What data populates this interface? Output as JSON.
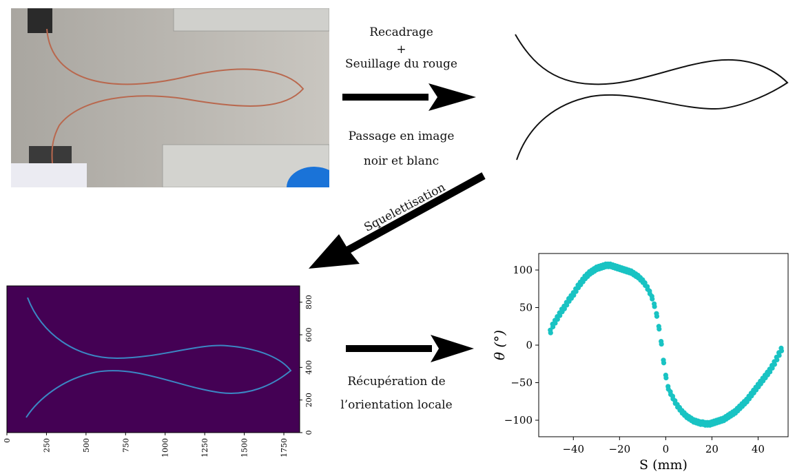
{
  "steps": {
    "crop": {
      "line1": "Recadrage",
      "line2": "+",
      "line3": "Seuillage du rouge"
    },
    "bw": {
      "line1": "Passage en image",
      "line2": "noir et blanc"
    },
    "skeleton": {
      "label": "Squelettisation"
    },
    "orientation": {
      "line1": "Récupération de",
      "line2": "l’orientation locale"
    }
  },
  "skeleton_plot": {
    "x_ticks": [
      "0",
      "250",
      "500",
      "750",
      "1000",
      "1250",
      "1500",
      "1750"
    ],
    "y_ticks": [
      "0",
      "200",
      "400",
      "600",
      "800"
    ],
    "colors": {
      "background": "#440154",
      "curve": "#3b87c4"
    }
  },
  "chart_data": {
    "type": "scatter",
    "xlabel": "S (mm)",
    "ylabel": "θ (°)",
    "xlim": [
      -55,
      53
    ],
    "ylim": [
      -122,
      122
    ],
    "x_ticks": [
      -40,
      -20,
      0,
      20,
      40
    ],
    "y_ticks": [
      -100,
      -50,
      0,
      50,
      100
    ],
    "color": "#19c3c3",
    "grid": false,
    "series": [
      {
        "x": [
          -50,
          -49,
          -48,
          -47,
          -46,
          -45,
          -44,
          -43,
          -42,
          -41,
          -40,
          -39,
          -38,
          -37,
          -36,
          -35,
          -34,
          -33,
          -32,
          -31,
          -30,
          -29,
          -28,
          -27,
          -26,
          -25,
          -24,
          -23,
          -22,
          -21,
          -20,
          -19,
          -18,
          -17,
          -16,
          -15,
          -14,
          -13,
          -12,
          -11,
          -10,
          -9,
          -8,
          -7,
          -6,
          -5,
          -4,
          -3,
          -2,
          -1,
          0,
          1,
          2,
          3,
          4,
          5,
          6,
          7,
          8,
          9,
          10,
          11,
          12,
          13,
          14,
          15,
          16,
          17,
          18,
          19,
          20,
          21,
          22,
          23,
          24,
          25,
          26,
          27,
          28,
          29,
          30,
          31,
          32,
          33,
          34,
          35,
          36,
          37,
          38,
          39,
          40,
          41,
          42,
          43,
          44,
          45,
          46,
          47,
          48,
          49,
          50
        ],
        "y": [
          20,
          28,
          33,
          38,
          43,
          48,
          52,
          57,
          62,
          66,
          70,
          75,
          80,
          84,
          88,
          92,
          95,
          98,
          100,
          102,
          104,
          105,
          106,
          107,
          108,
          108,
          108,
          107,
          106,
          105,
          104,
          103,
          102,
          101,
          100,
          99,
          97,
          95,
          93,
          90,
          87,
          83,
          78,
          72,
          65,
          55,
          42,
          25,
          5,
          -20,
          -40,
          -55,
          -62,
          -68,
          -74,
          -79,
          -83,
          -87,
          -90,
          -93,
          -95,
          -97,
          -99,
          -100,
          -101,
          -102,
          -102,
          -103,
          -103,
          -103,
          -102,
          -101,
          -100,
          -99,
          -98,
          -97,
          -95,
          -93,
          -91,
          -89,
          -87,
          -84,
          -81,
          -78,
          -75,
          -72,
          -68,
          -64,
          -60,
          -56,
          -52,
          -48,
          -44,
          -40,
          -36,
          -32,
          -27,
          -22,
          -16,
          -10,
          -4
        ]
      }
    ]
  }
}
